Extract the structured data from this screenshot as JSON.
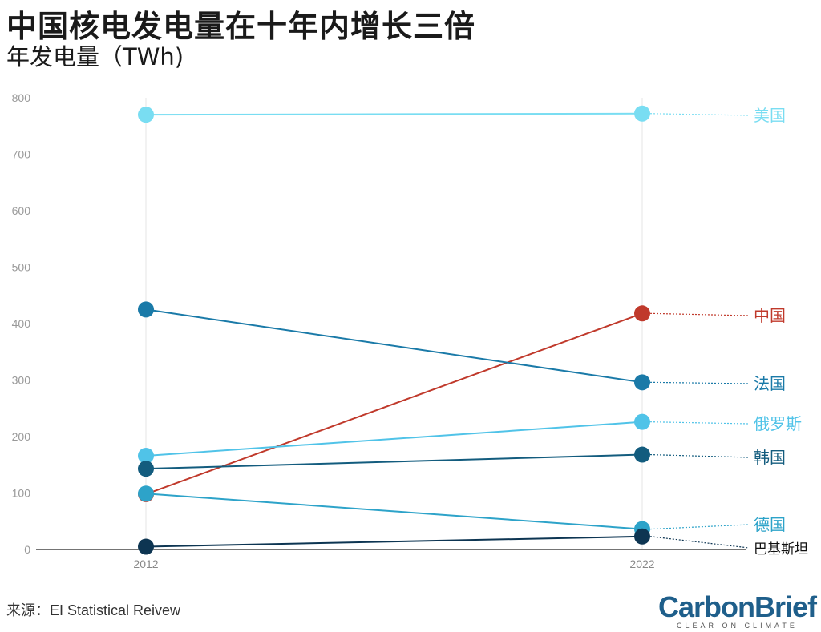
{
  "header": {
    "title": "中国核电发电量在十年内增长三倍",
    "subtitle": "年发电量（TWh)"
  },
  "footer": {
    "source": "来源：EI Statistical Reivew",
    "logo": "CarbonBrief",
    "logo_tagline": "CLEAR ON CLIMATE"
  },
  "colors": {
    "usa": "#79ddf2",
    "china": "#c0392b",
    "france": "#1a7aa8",
    "russia": "#50c3e8",
    "korea": "#135c7e",
    "germany": "#2da3c9",
    "pakistan": "#0d3552"
  },
  "chart_data": {
    "type": "line",
    "x": [
      "2012",
      "2022"
    ],
    "ylim": [
      0,
      800
    ],
    "yticks": [
      0,
      100,
      200,
      300,
      400,
      500,
      600,
      700,
      800
    ],
    "grid": "vertical lines at 2012 and 2022",
    "series": [
      {
        "key": "usa",
        "name": "美国",
        "values": [
          770,
          772
        ]
      },
      {
        "key": "china",
        "name": "中国",
        "values": [
          98,
          418
        ]
      },
      {
        "key": "france",
        "name": "法国",
        "values": [
          425,
          296
        ]
      },
      {
        "key": "russia",
        "name": "俄罗斯",
        "values": [
          166,
          226
        ]
      },
      {
        "key": "korea",
        "name": "韩国",
        "values": [
          143,
          168
        ]
      },
      {
        "key": "germany",
        "name": "德国",
        "values": [
          99,
          36
        ]
      },
      {
        "key": "pakistan",
        "name": "巴基斯坦",
        "values": [
          5,
          23
        ]
      }
    ]
  }
}
